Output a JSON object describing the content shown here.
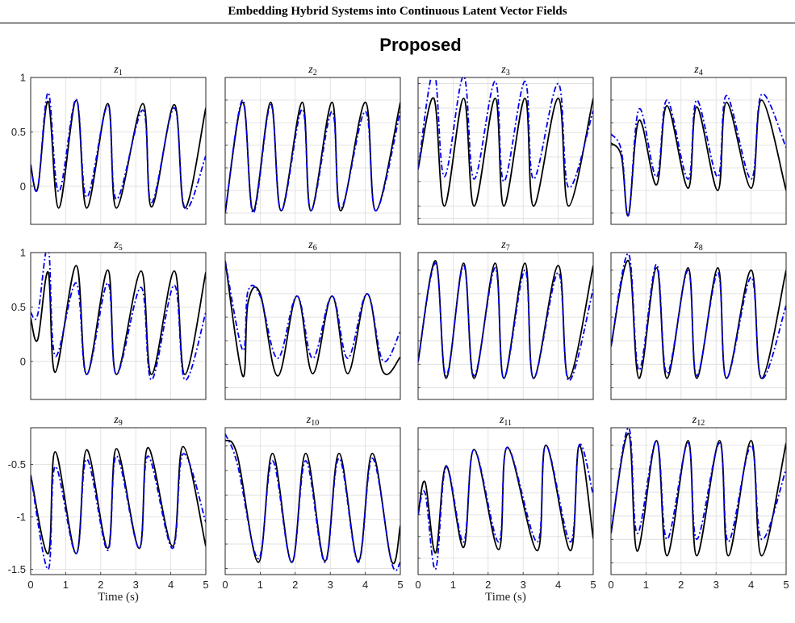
{
  "paper_header": "Embedding Hybrid Systems into Continuous Latent Vector Fields",
  "figure_title": "Proposed",
  "colors": {
    "actual": "#000000",
    "predicted": "#0000ee",
    "grid": "#dcdcdc",
    "axes": "#262626"
  },
  "chart_data": {
    "type": "line",
    "rows": 3,
    "cols": 4,
    "xlabel": "Time (s)",
    "xlim": [
      0,
      5
    ],
    "xticks": [
      "0",
      "1",
      "2",
      "3",
      "4",
      "5"
    ],
    "series_styles": [
      {
        "key": "actual",
        "line": "solid",
        "color": "#000000"
      },
      {
        "key": "predicted",
        "line": "dash-dot",
        "color": "#0000ee"
      }
    ],
    "subplots": [
      {
        "title": "z",
        "sub": "1",
        "ylim": [
          -0.35,
          1.0
        ],
        "yticks": [
          "1",
          "0.5",
          "0"
        ],
        "ytick_values": [
          1,
          0.5,
          0
        ],
        "x": [
          0,
          0.2,
          0.5,
          0.8,
          1.3,
          1.6,
          2.2,
          2.45,
          3.2,
          3.45,
          4.1,
          4.4,
          5.0
        ],
        "series": [
          {
            "key": "actual",
            "values": [
              0.2,
              -0.02,
              0.78,
              -0.2,
              0.79,
              -0.2,
              0.76,
              -0.2,
              0.76,
              -0.19,
              0.75,
              -0.2,
              0.72
            ]
          },
          {
            "key": "predicted",
            "values": [
              0.2,
              -0.02,
              0.86,
              -0.05,
              0.8,
              -0.1,
              0.74,
              -0.12,
              0.7,
              -0.15,
              0.72,
              -0.2,
              0.28
            ]
          }
        ]
      },
      {
        "title": "z",
        "sub": "2",
        "ylim": [
          -0.3,
          1.0
        ],
        "yticks": [],
        "ytick_values": [
          -0.2,
          0,
          0.2,
          0.4,
          0.6,
          0.8,
          1.0
        ],
        "x": [
          0,
          0.5,
          0.8,
          1.3,
          1.6,
          2.2,
          2.45,
          3.05,
          3.3,
          4.0,
          4.3,
          5.0
        ],
        "series": [
          {
            "key": "actual",
            "values": [
              -0.2,
              0.78,
              -0.18,
              0.78,
              -0.18,
              0.78,
              -0.18,
              0.78,
              -0.18,
              0.78,
              -0.18,
              0.78
            ]
          },
          {
            "key": "predicted",
            "values": [
              -0.2,
              0.8,
              -0.2,
              0.76,
              -0.18,
              0.72,
              -0.18,
              0.7,
              -0.16,
              0.7,
              -0.18,
              0.7
            ]
          }
        ]
      },
      {
        "title": "z",
        "sub": "3",
        "ylim": [
          -0.35,
          0.85
        ],
        "yticks": [],
        "ytick_values": [
          -0.3,
          -0.2,
          0,
          0.2,
          0.4,
          0.6,
          0.8
        ],
        "x": [
          0,
          0.45,
          0.75,
          1.3,
          1.6,
          2.2,
          2.45,
          3.05,
          3.3,
          4.0,
          4.3,
          5.0
        ],
        "series": [
          {
            "key": "actual",
            "values": [
              0.1,
              0.68,
              -0.2,
              0.68,
              -0.2,
              0.68,
              -0.2,
              0.68,
              -0.2,
              0.68,
              -0.2,
              0.68
            ]
          },
          {
            "key": "predicted",
            "values": [
              0.1,
              0.9,
              0.04,
              0.86,
              0.02,
              0.82,
              0.0,
              0.82,
              0.02,
              0.8,
              -0.05,
              0.58
            ]
          }
        ]
      },
      {
        "title": "z",
        "sub": "4",
        "ylim": [
          -0.3,
          1.0
        ],
        "yticks": [],
        "ytick_values": [
          -0.2,
          0,
          0.2,
          0.4,
          0.6,
          0.8,
          1.0
        ],
        "x": [
          0,
          0.3,
          0.5,
          0.8,
          1.3,
          1.6,
          2.2,
          2.45,
          3.05,
          3.3,
          4.0,
          4.3,
          5.0
        ],
        "series": [
          {
            "key": "actual",
            "values": [
              0.42,
              0.3,
              -0.22,
              0.62,
              0.05,
              0.75,
              0.02,
              0.74,
              0.0,
              0.78,
              0.02,
              0.8,
              0.0
            ]
          },
          {
            "key": "predicted",
            "values": [
              0.5,
              0.35,
              -0.22,
              0.72,
              0.12,
              0.8,
              0.1,
              0.8,
              0.12,
              0.84,
              0.1,
              0.85,
              0.38
            ]
          }
        ]
      },
      {
        "title": "z",
        "sub": "5",
        "ylim": [
          -0.35,
          1.0
        ],
        "yticks": [
          "1",
          "0.5",
          "0"
        ],
        "ytick_values": [
          1,
          0.5,
          0
        ],
        "x": [
          0,
          0.2,
          0.5,
          0.7,
          1.3,
          1.6,
          2.2,
          2.45,
          3.15,
          3.45,
          4.1,
          4.4,
          5.0
        ],
        "series": [
          {
            "key": "actual",
            "values": [
              0.4,
              0.2,
              0.82,
              -0.1,
              0.88,
              -0.12,
              0.84,
              -0.12,
              0.83,
              -0.12,
              0.83,
              -0.12,
              0.82
            ]
          },
          {
            "key": "predicted",
            "values": [
              0.45,
              0.43,
              1.05,
              0.05,
              0.72,
              -0.12,
              0.72,
              -0.12,
              0.68,
              -0.17,
              0.7,
              -0.17,
              0.45
            ]
          }
        ]
      },
      {
        "title": "z",
        "sub": "6",
        "ylim": [
          -0.3,
          0.95
        ],
        "yticks": [],
        "ytick_values": [
          -0.2,
          0,
          0.2,
          0.4,
          0.6,
          0.8
        ],
        "x": [
          0,
          0.5,
          0.65,
          1.0,
          1.5,
          2.05,
          2.5,
          3.05,
          3.5,
          4.05,
          4.5,
          5.0
        ],
        "series": [
          {
            "key": "actual",
            "values": [
              0.88,
              -0.1,
              0.52,
              0.6,
              -0.1,
              0.58,
              -0.08,
              0.58,
              -0.08,
              0.6,
              -0.06,
              0.06
            ]
          },
          {
            "key": "predicted",
            "values": [
              0.88,
              0.12,
              0.62,
              0.58,
              0.05,
              0.58,
              0.05,
              0.58,
              0.05,
              0.6,
              0.03,
              0.28
            ]
          }
        ]
      },
      {
        "title": "z",
        "sub": "7",
        "ylim": [
          -0.3,
          0.95
        ],
        "yticks": [],
        "ytick_values": [
          -0.2,
          0,
          0.2,
          0.4,
          0.6,
          0.8
        ],
        "x": [
          0,
          0.5,
          0.8,
          1.3,
          1.6,
          2.2,
          2.45,
          3.05,
          3.3,
          4.0,
          4.3,
          5.0
        ],
        "series": [
          {
            "key": "actual",
            "values": [
              0.02,
              0.88,
              -0.12,
              0.86,
              -0.12,
              0.86,
              -0.12,
              0.86,
              -0.12,
              0.84,
              -0.12,
              0.84
            ]
          },
          {
            "key": "predicted",
            "values": [
              0.02,
              0.86,
              -0.1,
              0.84,
              -0.1,
              0.82,
              -0.12,
              0.8,
              -0.12,
              0.78,
              -0.14,
              0.64
            ]
          }
        ]
      },
      {
        "title": "z",
        "sub": "8",
        "ylim": [
          -0.3,
          0.95
        ],
        "yticks": [],
        "ytick_values": [
          -0.2,
          0,
          0.2,
          0.4,
          0.6,
          0.8
        ],
        "x": [
          0,
          0.5,
          0.8,
          1.3,
          1.6,
          2.2,
          2.45,
          3.05,
          3.3,
          4.0,
          4.3,
          5.0
        ],
        "series": [
          {
            "key": "actual",
            "values": [
              0.15,
              0.88,
              -0.12,
              0.82,
              -0.12,
              0.82,
              -0.12,
              0.82,
              -0.12,
              0.8,
              -0.12,
              0.8
            ]
          },
          {
            "key": "predicted",
            "values": [
              0.15,
              0.94,
              -0.05,
              0.85,
              -0.08,
              0.8,
              -0.1,
              0.78,
              -0.12,
              0.74,
              -0.12,
              0.5
            ]
          }
        ]
      },
      {
        "title": "z",
        "sub": "9",
        "ylim": [
          -1.55,
          -0.15
        ],
        "yticks": [
          "-0.5",
          "-1",
          "-1.5"
        ],
        "ytick_values": [
          -0.5,
          -1,
          -1.5
        ],
        "x": [
          0,
          0.5,
          0.7,
          1.3,
          1.6,
          2.2,
          2.45,
          3.1,
          3.35,
          4.05,
          4.35,
          5.0
        ],
        "series": [
          {
            "key": "actual",
            "values": [
              -0.6,
              -1.35,
              -0.38,
              -1.35,
              -0.36,
              -1.3,
              -0.35,
              -1.3,
              -0.34,
              -1.28,
              -0.33,
              -1.28
            ]
          },
          {
            "key": "predicted",
            "values": [
              -0.6,
              -1.5,
              -0.52,
              -1.35,
              -0.45,
              -1.32,
              -0.42,
              -1.3,
              -0.42,
              -1.3,
              -0.4,
              -1.05
            ]
          }
        ]
      },
      {
        "title": "z",
        "sub": "10",
        "ylim": [
          -1.45,
          -0.25
        ],
        "yticks": [],
        "ytick_values": [
          -1.4,
          -1.2,
          -1.0,
          -0.8,
          -0.6,
          -0.4
        ],
        "x": [
          0,
          0.35,
          0.95,
          1.35,
          1.9,
          2.3,
          2.85,
          3.25,
          3.8,
          4.2,
          4.75,
          5.0
        ],
        "series": [
          {
            "key": "actual",
            "values": [
              -0.35,
              -0.48,
              -1.35,
              -0.46,
              -1.35,
              -0.46,
              -1.34,
              -0.46,
              -1.34,
              -0.46,
              -1.34,
              -1.05
            ]
          },
          {
            "key": "predicted",
            "values": [
              -0.3,
              -0.55,
              -1.32,
              -0.52,
              -1.35,
              -0.52,
              -1.35,
              -0.5,
              -1.35,
              -0.5,
              -1.35,
              -1.35
            ]
          }
        ]
      },
      {
        "title": "z",
        "sub": "11",
        "ylim": [
          -1.55,
          -0.2
        ],
        "yticks": [],
        "ytick_values": [
          -1.4,
          -1.2,
          -1.0,
          -0.8,
          -0.6,
          -0.4
        ],
        "x": [
          0,
          0.2,
          0.5,
          0.8,
          1.3,
          1.6,
          2.3,
          2.55,
          3.4,
          3.65,
          4.35,
          4.6,
          5.0
        ],
        "series": [
          {
            "key": "actual",
            "values": [
              -1.0,
              -0.7,
              -1.35,
              -0.55,
              -1.3,
              -0.4,
              -1.32,
              -0.38,
              -1.33,
              -0.36,
              -1.33,
              -0.36,
              -1.22
            ]
          },
          {
            "key": "predicted",
            "values": [
              -1.0,
              -0.8,
              -1.5,
              -0.56,
              -1.25,
              -0.4,
              -1.25,
              -0.38,
              -1.25,
              -0.36,
              -1.25,
              -0.36,
              -0.82
            ]
          }
        ]
      },
      {
        "title": "z",
        "sub": "12",
        "ylim": [
          -1.5,
          -0.25
        ],
        "yticks": [],
        "ytick_values": [
          -1.4,
          -1.2,
          -1.0,
          -0.8,
          -0.6,
          -0.4
        ],
        "x": [
          0,
          0.5,
          0.75,
          1.3,
          1.6,
          2.2,
          2.45,
          3.1,
          3.35,
          4.0,
          4.3,
          5.0
        ],
        "series": [
          {
            "key": "actual",
            "values": [
              -1.15,
              -0.3,
              -1.3,
              -0.36,
              -1.34,
              -0.36,
              -1.34,
              -0.36,
              -1.34,
              -0.36,
              -1.34,
              -0.38
            ]
          },
          {
            "key": "predicted",
            "values": [
              -1.15,
              -0.25,
              -1.15,
              -0.36,
              -1.2,
              -0.38,
              -1.2,
              -0.38,
              -1.22,
              -0.4,
              -1.2,
              -0.6
            ]
          }
        ]
      }
    ]
  }
}
